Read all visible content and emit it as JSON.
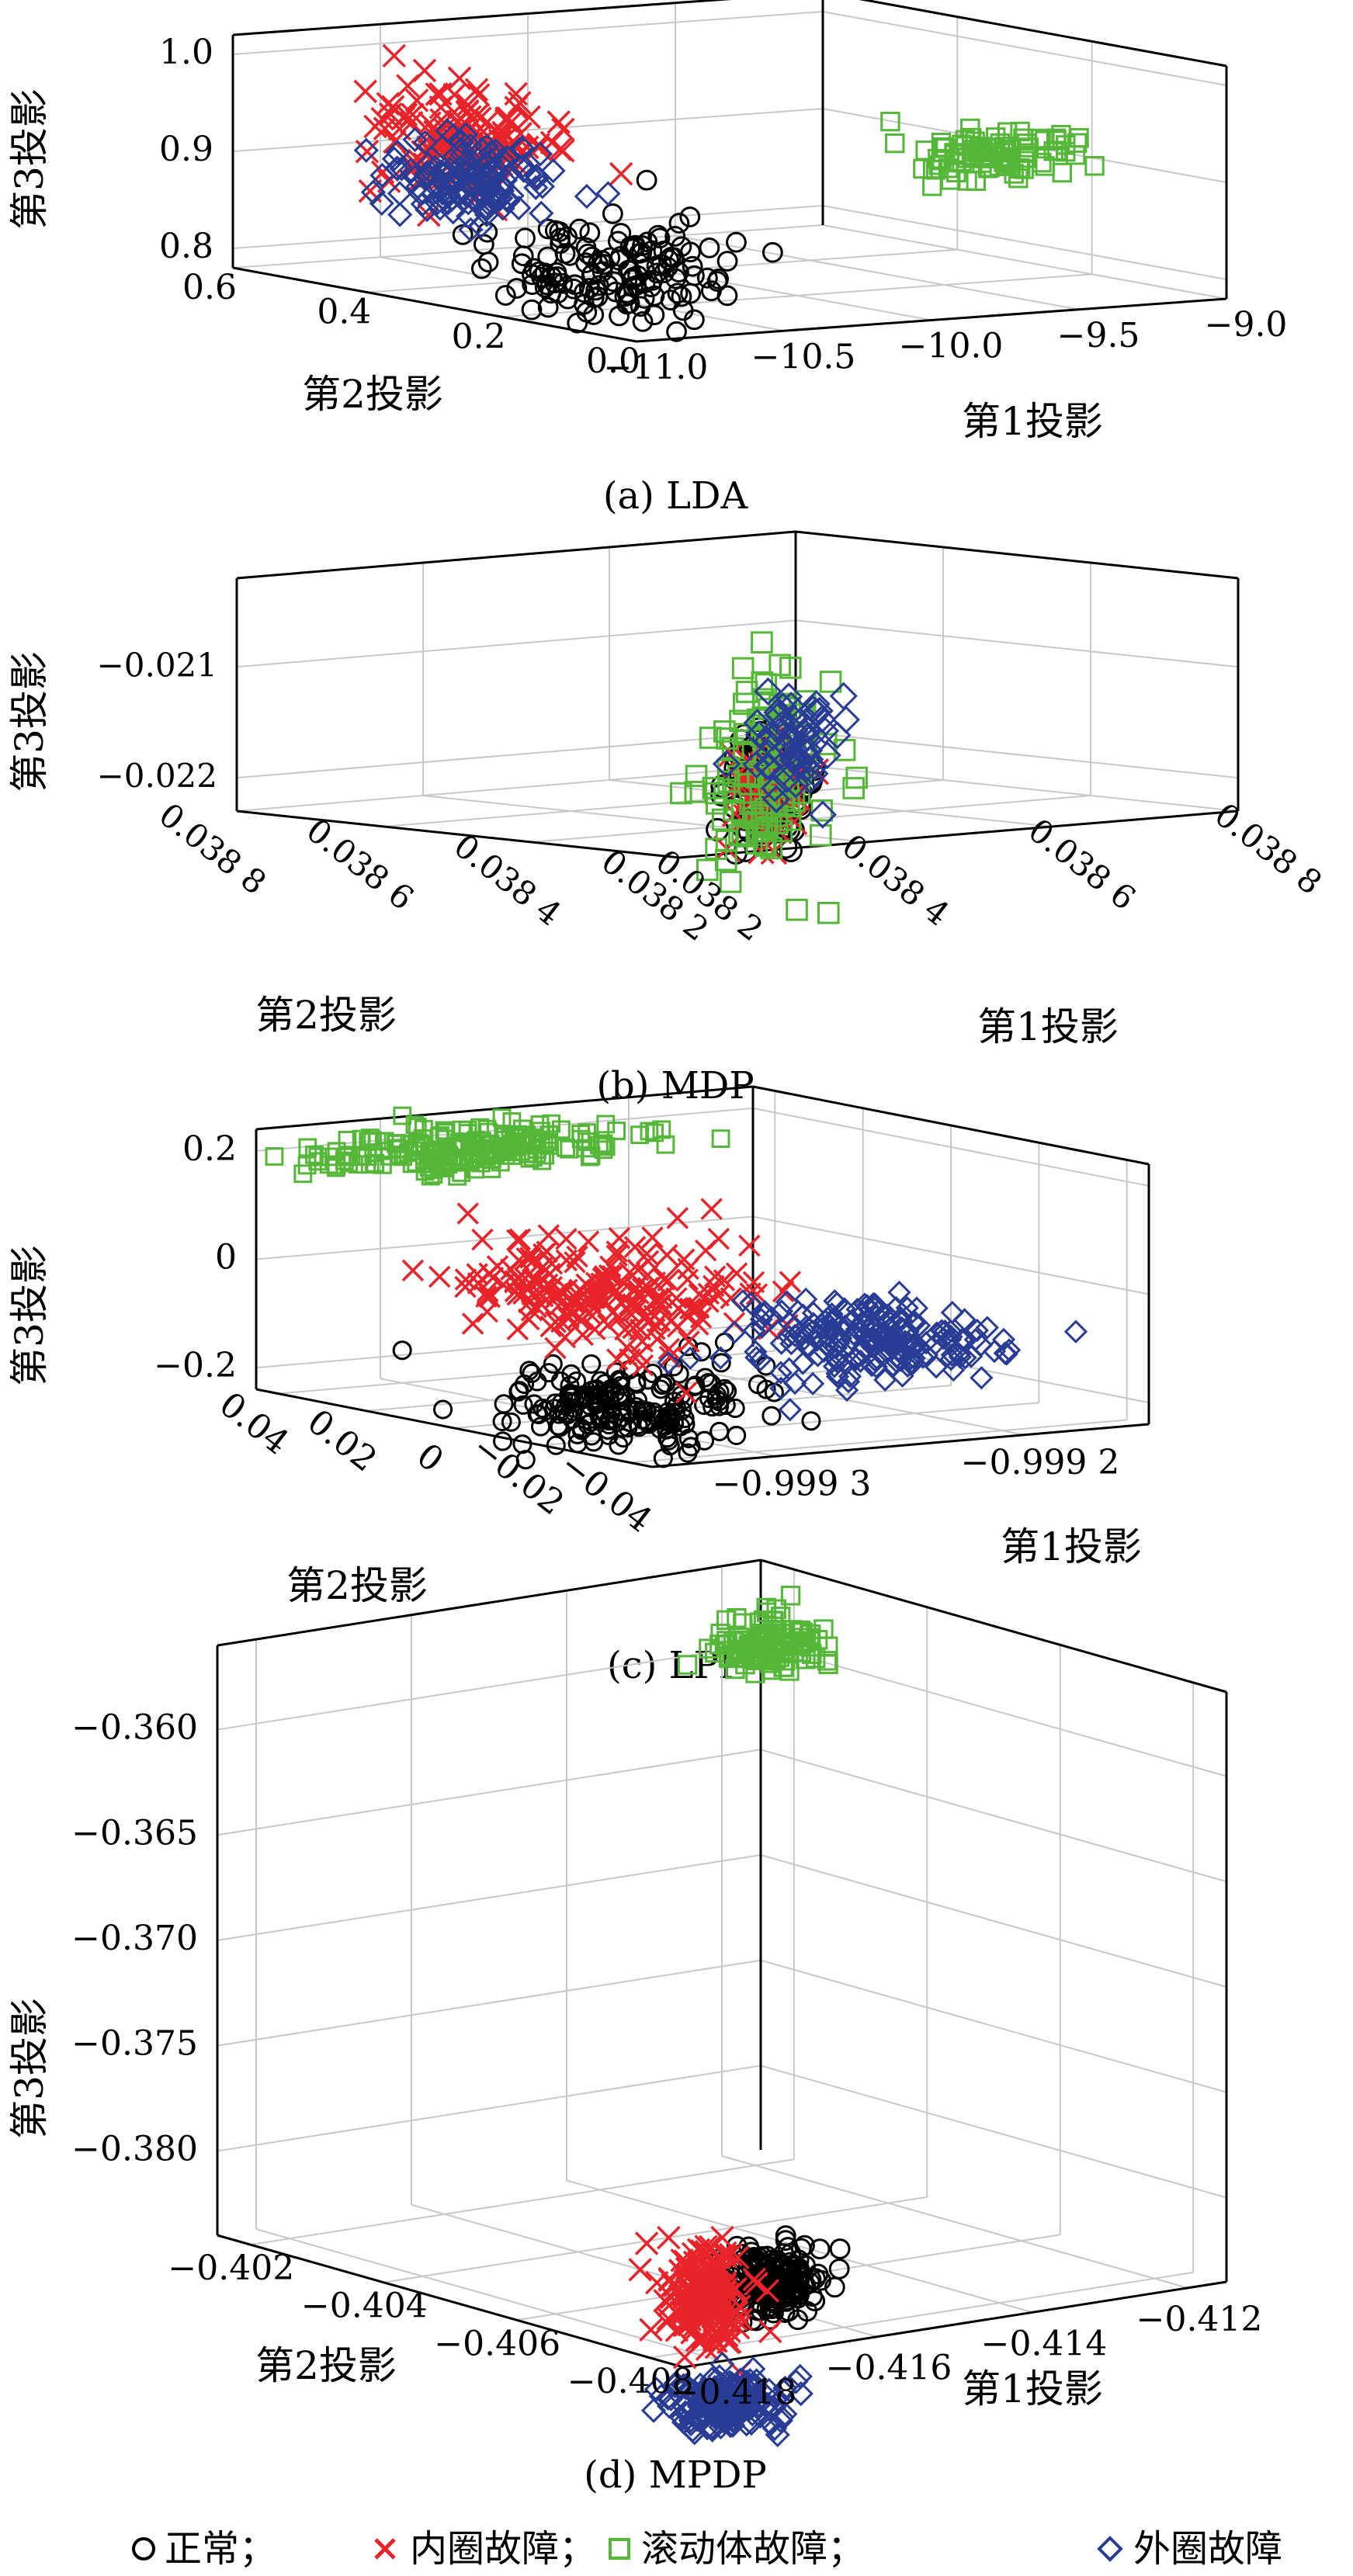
{
  "legend": {
    "items": [
      {
        "name": "正常",
        "symbol": "circle",
        "color": "#000000"
      },
      {
        "name": "内圈故障",
        "symbol": "cross",
        "color": "#e8242a"
      },
      {
        "name": "滚动体故障",
        "symbol": "square",
        "color": "#54b738"
      },
      {
        "name": "外圈故障",
        "symbol": "diamond",
        "color": "#283c96"
      }
    ],
    "separator": "；"
  },
  "chart_data": [
    {
      "type": "scatter",
      "title": "(a) LDA",
      "xlabel": "第1投影",
      "ylabel": "第2投影",
      "zlabel": "第3投影",
      "x_ticks": [
        "−11.0",
        "−10.5",
        "−10.0",
        "−9.5",
        "−9.0"
      ],
      "y_ticks": [
        "0.0",
        "0.2",
        "0.4",
        "0.6"
      ],
      "z_ticks": [
        "0.8",
        "0.9",
        "1.0"
      ],
      "xlim": [
        -11.0,
        -9.0
      ],
      "ylim": [
        0.0,
        0.6
      ],
      "zlim": [
        0.78,
        1.02
      ],
      "series": [
        {
          "name": "正常",
          "center": [
            -10.75,
            0.15,
            0.83
          ],
          "spread": [
            0.15,
            0.05,
            0.025
          ],
          "count": 140
        },
        {
          "name": "内圈故障",
          "center": [
            -10.9,
            0.3,
            0.95
          ],
          "spread": [
            0.12,
            0.04,
            0.03
          ],
          "count": 140
        },
        {
          "name": "滚动体故障",
          "center": [
            -9.6,
            0.08,
            0.93
          ],
          "spread": [
            0.12,
            0.03,
            0.012
          ],
          "count": 90
        },
        {
          "name": "外圈故障",
          "center": [
            -10.3,
            0.55,
            0.86
          ],
          "spread": [
            0.12,
            0.03,
            0.018
          ],
          "count": 140
        }
      ]
    },
    {
      "type": "scatter",
      "title": "(b) MDP",
      "xlabel": "第1投影",
      "ylabel": "第2投影",
      "zlabel": "第3投影",
      "x_ticks": [
        "0.038 2",
        "0.038 4",
        "0.038 6",
        "0.038 8"
      ],
      "y_ticks": [
        "0.038 2",
        "0.038 4",
        "0.038 6",
        "0.038 8"
      ],
      "z_ticks": [
        "−0.022",
        "−0.021"
      ],
      "xlim": [
        0.0382,
        0.0388
      ],
      "ylim": [
        0.0382,
        0.0388
      ],
      "zlim": [
        -0.0223,
        -0.0202
      ],
      "series": [
        {
          "name": "正常",
          "center": [
            0.03832,
            0.03823,
            -0.02175
          ],
          "spread": [
            2e-05,
            1e-05,
            0.00025
          ],
          "count": 120
        },
        {
          "name": "内圈故障",
          "center": [
            0.03832,
            0.03823,
            -0.02175
          ],
          "spread": [
            2e-05,
            1e-05,
            0.0002
          ],
          "count": 60
        },
        {
          "name": "滚动体故障",
          "center": [
            0.03832,
            0.03823,
            -0.0216
          ],
          "spread": [
            3e-05,
            2e-05,
            0.0006
          ],
          "count": 110
        },
        {
          "name": "外圈故障",
          "center": [
            0.03834,
            0.03822,
            -0.0214
          ],
          "spread": [
            2e-05,
            1e-05,
            0.00025
          ],
          "count": 60
        }
      ]
    },
    {
      "type": "scatter",
      "title": "(c) LPP",
      "xlabel": "第1投影",
      "ylabel": "第2投影",
      "zlabel": "第3投影",
      "x_ticks": [
        "−0.999 3",
        "−0.999 2"
      ],
      "y_ticks": [
        "0.04",
        "0.02",
        "0",
        "−0.02",
        "−0.04"
      ],
      "z_ticks": [
        "−0.2",
        "0",
        "0.2"
      ],
      "xlim": [
        -0.99935,
        -0.99915
      ],
      "ylim": [
        -0.045,
        0.045
      ],
      "zlim": [
        -0.24,
        0.24
      ],
      "series": [
        {
          "name": "正常",
          "center": [
            -0.99932,
            -0.02,
            -0.18
          ],
          "spread": [
            2e-05,
            0.01,
            0.03
          ],
          "count": 200
        },
        {
          "name": "内圈故障",
          "center": [
            -0.99929,
            0.0,
            -0.02
          ],
          "spread": [
            2e-05,
            0.012,
            0.05
          ],
          "count": 200
        },
        {
          "name": "滚动体故障",
          "center": [
            -0.99928,
            0.035,
            0.19
          ],
          "spread": [
            3e-05,
            0.006,
            0.015
          ],
          "count": 200
        },
        {
          "name": "外圈故障",
          "center": [
            -0.99922,
            -0.02,
            -0.1
          ],
          "spread": [
            2e-05,
            0.01,
            0.035
          ],
          "count": 200
        }
      ]
    },
    {
      "type": "scatter",
      "title": "(d) MPDP",
      "xlabel": "第1投影",
      "ylabel": "第2投影",
      "zlabel": "第3投影",
      "x_ticks": [
        "−0.418",
        "−0.416",
        "−0.414",
        "−0.412"
      ],
      "y_ticks": [
        "−0.402",
        "−0.404",
        "−0.406",
        "−0.408"
      ],
      "z_ticks": [
        "−0.360",
        "−0.365",
        "−0.370",
        "−0.375",
        "−0.380"
      ],
      "xlim": [
        -0.4185,
        -0.4115
      ],
      "ylim": [
        -0.4085,
        -0.4015
      ],
      "zlim": [
        -0.384,
        -0.356
      ],
      "series": [
        {
          "name": "正常",
          "center": [
            -0.4168,
            -0.4078,
            -0.3815
          ],
          "spread": [
            0.0003,
            0.0002,
            0.0008
          ],
          "count": 180
        },
        {
          "name": "内圈故障",
          "center": [
            -0.4176,
            -0.4078,
            -0.3818
          ],
          "spread": [
            0.0002,
            0.0002,
            0.0012
          ],
          "count": 180
        },
        {
          "name": "滚动体故障",
          "center": [
            -0.4142,
            -0.4048,
            -0.3555
          ],
          "spread": [
            0.0003,
            0.0002,
            0.0006
          ],
          "count": 120
        },
        {
          "name": "外圈故障",
          "center": [
            -0.4175,
            -0.408,
            -0.3868
          ],
          "spread": [
            0.0003,
            0.0002,
            0.0006
          ],
          "count": 180
        }
      ]
    }
  ]
}
